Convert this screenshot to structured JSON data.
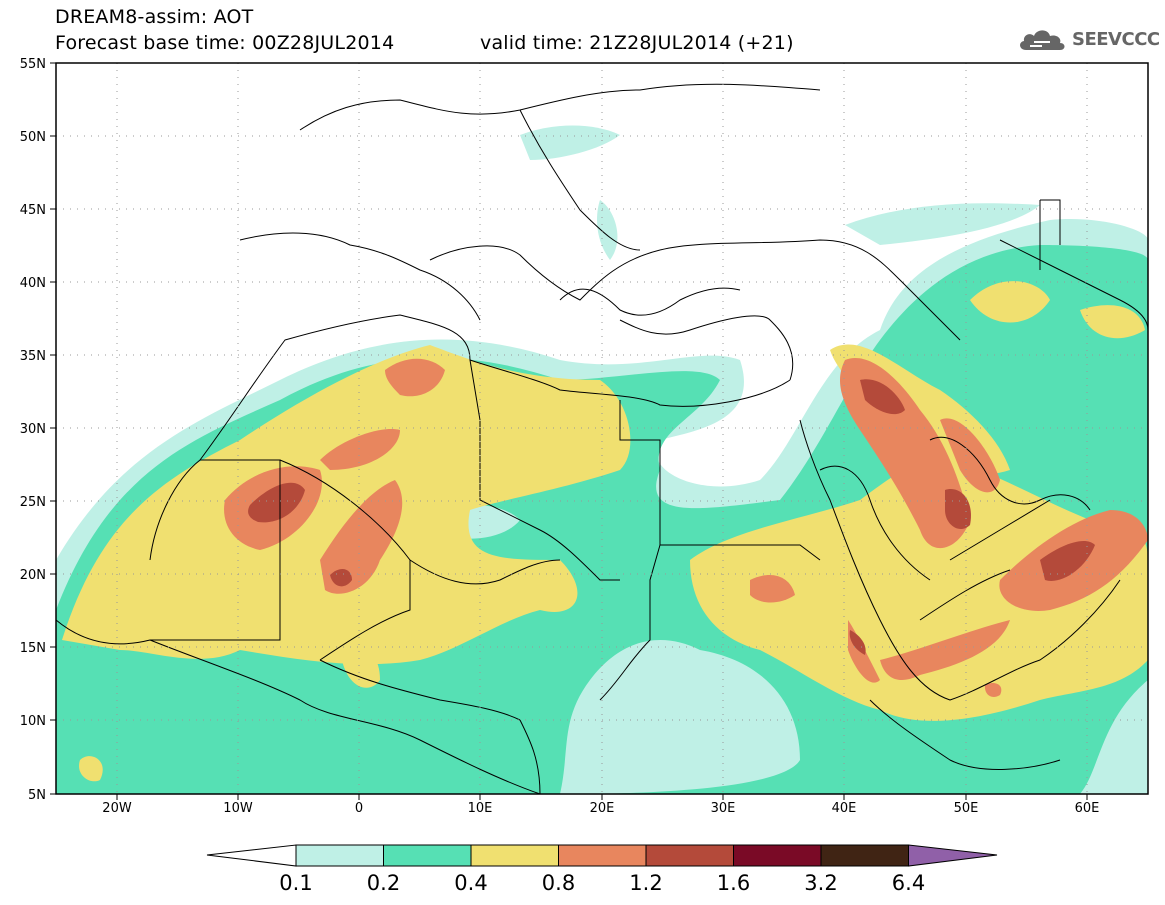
{
  "header": {
    "title": "DREAM8-assim: AOT",
    "base_time": "Forecast base time: 00Z28JUL2014",
    "valid_time": "valid time: 21Z28JUL2014 (+21)"
  },
  "logo": {
    "text": "SEEVCCC",
    "icon": "cloud-icon"
  },
  "map": {
    "region": {
      "lon_min": -25,
      "lon_max": 65,
      "lat_min": 5,
      "lat_max": 55
    },
    "lat_ticks": [
      "5N",
      "10N",
      "15N",
      "20N",
      "25N",
      "30N",
      "35N",
      "40N",
      "45N",
      "50N",
      "55N"
    ],
    "lon_ticks": [
      "20W",
      "10W",
      "0",
      "10E",
      "20E",
      "30E",
      "40E",
      "50E",
      "60E"
    ],
    "grid": "dotted"
  },
  "colorbar": {
    "levels": [
      "0.1",
      "0.2",
      "0.4",
      "0.8",
      "1.2",
      "1.6",
      "3.2",
      "6.4"
    ],
    "colors": [
      "#bff0e6",
      "#56e0b4",
      "#f0e070",
      "#e8865e",
      "#b44a3a",
      "#7a0a26",
      "#402414",
      "#9060a8"
    ]
  }
}
